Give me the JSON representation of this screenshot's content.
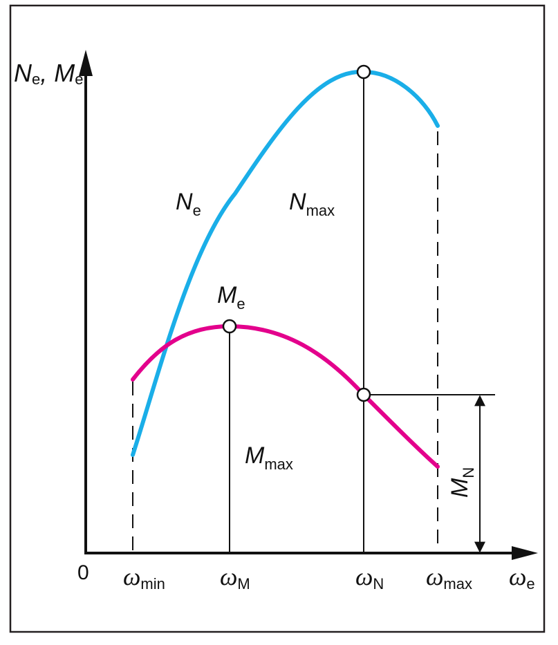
{
  "diagram": {
    "title": "",
    "colors": {
      "frame": "#231f20",
      "power_curve": "#1aaee8",
      "torque_curve": "#e3008c",
      "axis": "#111111"
    },
    "axes": {
      "y_label": {
        "main": "N",
        "sub": "e",
        "sep": ", ",
        "main2": "M",
        "sub2": "e"
      },
      "x_label": {
        "main": "ω",
        "sub": "e"
      },
      "origin": "0"
    },
    "curve_labels": {
      "power": {
        "main": "N",
        "sub": "e"
      },
      "torque": {
        "main": "M",
        "sub": "e"
      },
      "n_max": {
        "main": "N",
        "sub": "max"
      },
      "m_max": {
        "main": "M",
        "sub": "max"
      },
      "m_n": {
        "main": "M",
        "sub": "N"
      }
    },
    "x_ticks": [
      {
        "main": "ω",
        "sub": "min"
      },
      {
        "main": "ω",
        "sub": "M"
      },
      {
        "main": "ω",
        "sub": "N"
      },
      {
        "main": "ω",
        "sub": "max"
      }
    ]
  }
}
